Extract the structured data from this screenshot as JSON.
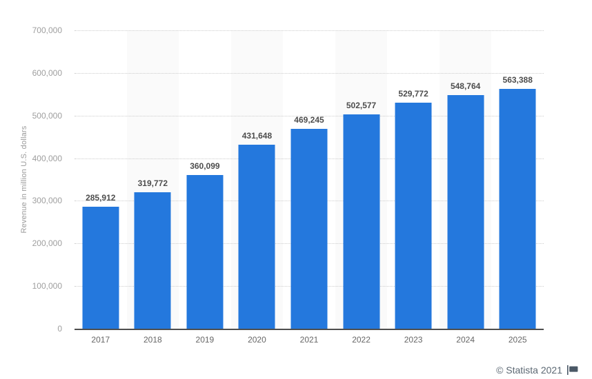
{
  "chart_data": {
    "type": "bar",
    "title": "",
    "xlabel": "",
    "ylabel": "Revenue in million U.S. dollars",
    "categories": [
      "2017",
      "2018",
      "2019",
      "2020",
      "2021",
      "2022",
      "2023",
      "2024",
      "2025"
    ],
    "values": [
      285912,
      319772,
      360099,
      431648,
      469245,
      502577,
      529772,
      548764,
      563388
    ],
    "value_labels": [
      "285,912",
      "319,772",
      "360,099",
      "431,648",
      "469,245",
      "502,577",
      "529,772",
      "548,764",
      "563,388"
    ],
    "ylim": [
      0,
      700000
    ],
    "ytick_interval": 100000,
    "ytick_labels": [
      "0",
      "100,000",
      "200,000",
      "300,000",
      "400,000",
      "500,000",
      "600,000",
      "700,000"
    ],
    "grid": "horizontal dotted gridlines on",
    "legend": "none",
    "bar_color": "#2478dd",
    "stripe_color": "#fafafa",
    "striped_categories": [
      "2018",
      "2020",
      "2022",
      "2024"
    ],
    "axis_line_color": "#4d4d4d",
    "gridline_color": "#cccccc"
  },
  "footer": {
    "copyright": "© Statista 2021",
    "flag_icon": "flag-icon",
    "icon_color": "#4a5866"
  }
}
